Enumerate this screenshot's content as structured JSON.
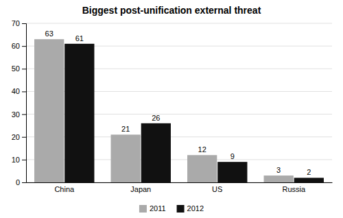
{
  "chart_data": {
    "type": "bar",
    "title": "Biggest post-unification external threat",
    "categories": [
      "China",
      "Japan",
      "US",
      "Russia"
    ],
    "series": [
      {
        "name": "2011",
        "color": "#aaaaaa",
        "values": [
          63,
          21,
          12,
          3
        ]
      },
      {
        "name": "2012",
        "color": "#111111",
        "values": [
          61,
          26,
          9,
          2
        ]
      }
    ],
    "ylim": [
      0,
      70
    ],
    "yticks": [
      0,
      10,
      20,
      30,
      40,
      50,
      60,
      70
    ],
    "grid": true,
    "legend": "bottom",
    "data_labels": true
  }
}
